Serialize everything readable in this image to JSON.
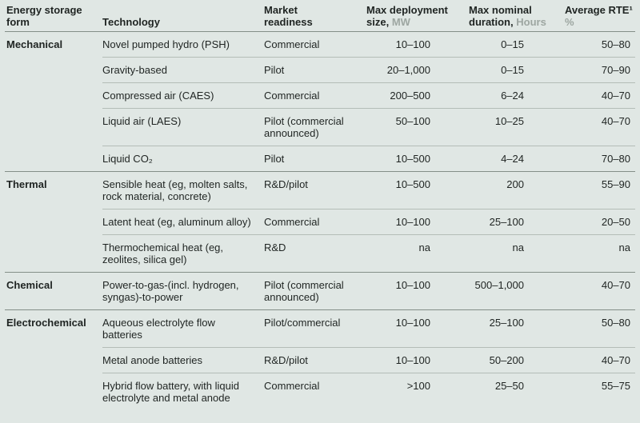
{
  "colors": {
    "background": "#e0e7e4",
    "text": "#1f2422",
    "unit_text": "#9da6a1",
    "section_line": "#848f88",
    "row_line": "#b4bdb7"
  },
  "chart_data": {
    "type": "table",
    "columns": [
      {
        "line1": "Energy storage",
        "line2": "form",
        "unit": ""
      },
      {
        "line1": "",
        "line2": "Technology",
        "unit": ""
      },
      {
        "line1": "Market",
        "line2": "readiness",
        "unit": ""
      },
      {
        "line1": "Max deployment",
        "line2": "size,",
        "unit": "MW"
      },
      {
        "line1": "Max nominal",
        "line2": "duration,",
        "unit": "Hours"
      },
      {
        "line1": "Average RTE¹",
        "line2": "",
        "unit": "%"
      }
    ],
    "sections": [
      {
        "form": "Mechanical",
        "rows": [
          {
            "technology": "Novel pumped hydro (PSH)",
            "readiness": "Commercial",
            "size": "10–100",
            "duration": "0–15",
            "rte": "50–80"
          },
          {
            "technology": "Gravity-based",
            "readiness": "Pilot",
            "size": "20–1,000",
            "duration": "0–15",
            "rte": "70–90"
          },
          {
            "technology": "Compressed air (CAES)",
            "readiness": "Commercial",
            "size": "200–500",
            "duration": "6–24",
            "rte": "40–70"
          },
          {
            "technology": "Liquid air (LAES)",
            "readiness": "Pilot (commercial announced)",
            "size": "50–100",
            "duration": "10–25",
            "rte": "40–70"
          },
          {
            "technology": "Liquid CO₂",
            "readiness": "Pilot",
            "size": "10–500",
            "duration": "4–24",
            "rte": "70–80"
          }
        ]
      },
      {
        "form": "Thermal",
        "rows": [
          {
            "technology": "Sensible heat (eg, molten salts, rock material, concrete)",
            "readiness": "R&D/pilot",
            "size": "10–500",
            "duration": "200",
            "rte": "55–90"
          },
          {
            "technology": "Latent heat (eg, aluminum alloy)",
            "readiness": "Commercial",
            "size": "10–100",
            "duration": "25–100",
            "rte": "20–50"
          },
          {
            "technology": "Thermochemical heat (eg, zeolites, silica gel)",
            "readiness": "R&D",
            "size": "na",
            "duration": "na",
            "rte": "na"
          }
        ]
      },
      {
        "form": "Chemical",
        "rows": [
          {
            "technology": "Power-to-gas-(incl. hydrogen, syngas)-to-power",
            "readiness": "Pilot (commercial announced)",
            "size": "10–100",
            "duration": "500–1,000",
            "rte": "40–70"
          }
        ]
      },
      {
        "form": "Electrochemical",
        "rows": [
          {
            "technology": "Aqueous electrolyte flow batteries",
            "readiness": "Pilot/commercial",
            "size": "10–100",
            "duration": "25–100",
            "rte": "50–80"
          },
          {
            "technology": "Metal anode batteries",
            "readiness": "R&D/pilot",
            "size": "10–100",
            "duration": "50–200",
            "rte": "40–70"
          },
          {
            "technology": "Hybrid flow battery, with liquid electrolyte and metal anode",
            "readiness": "Commercial",
            "size": ">100",
            "duration": "25–50",
            "rte": "55–75"
          }
        ]
      }
    ]
  }
}
